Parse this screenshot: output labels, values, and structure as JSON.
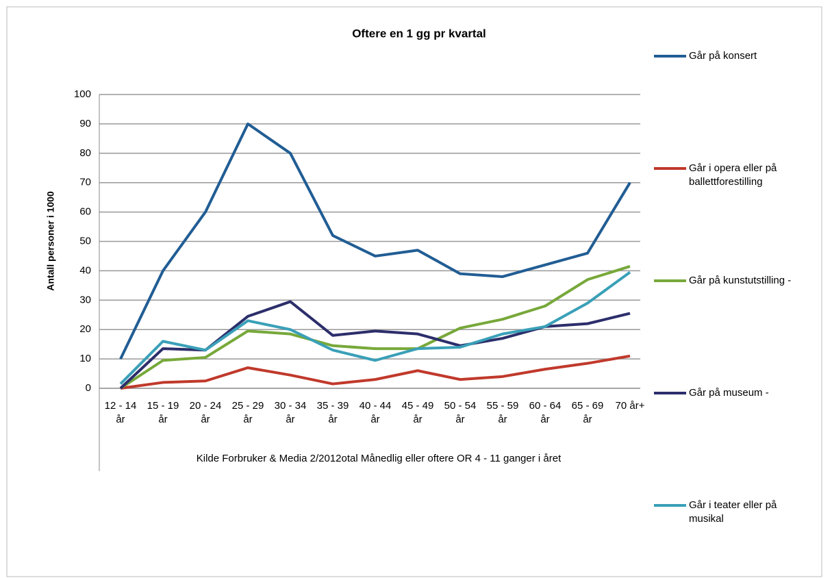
{
  "chart_data": {
    "type": "line",
    "title": "Oftere en 1 gg pr kvartal",
    "y_label": "Antall personer  i 1000",
    "x_label": "Kilde Forbruker & Media 2/2012otal Månedlig eller oftere OR 4 - 11 ganger i året",
    "categories": [
      "12 - 14 år",
      "15 - 19 år",
      "20 - 24 år",
      "25 - 29 år",
      "30 - 34 år",
      "35 - 39 år",
      "40 - 44 år",
      "45 - 49 år",
      "50 - 54 år",
      "55 - 59 år",
      "60 - 64 år",
      "65 - 69 år",
      "70 år+"
    ],
    "series": [
      {
        "name": "Går på konsert",
        "color": "#215d94",
        "values": [
          10,
          40,
          60,
          90,
          80,
          52,
          45,
          47,
          39,
          38,
          42,
          46,
          70
        ]
      },
      {
        "name": "Går i opera eller på ballettforestilling",
        "color": "#c0392b",
        "values": [
          0,
          2,
          2.5,
          7,
          4.5,
          1.5,
          3,
          6,
          3,
          4,
          6.5,
          8.5,
          11
        ]
      },
      {
        "name": "Går på kunstutstilling -",
        "color": "#77a83a",
        "values": [
          0,
          9.5,
          10.5,
          19.5,
          18.5,
          14.5,
          13.5,
          13.5,
          20.5,
          23.5,
          28,
          37,
          41.5
        ]
      },
      {
        "name": "Går på museum -",
        "color": "#2c2e6b",
        "values": [
          0,
          13.5,
          13,
          24.5,
          29.5,
          18,
          19.5,
          18.5,
          14.5,
          17,
          21,
          22,
          25.5
        ]
      },
      {
        "name": "Går i teater eller på musikal",
        "color": "#3aa0b8",
        "values": [
          1.5,
          16,
          13,
          23,
          20,
          13,
          9.5,
          13.5,
          14,
          18.5,
          21,
          29,
          39.5
        ]
      }
    ],
    "ylim": [
      0,
      100
    ],
    "yticks": [
      0,
      10,
      20,
      30,
      40,
      50,
      60,
      70,
      80,
      90,
      100
    ],
    "grid": true,
    "legend": "right"
  }
}
